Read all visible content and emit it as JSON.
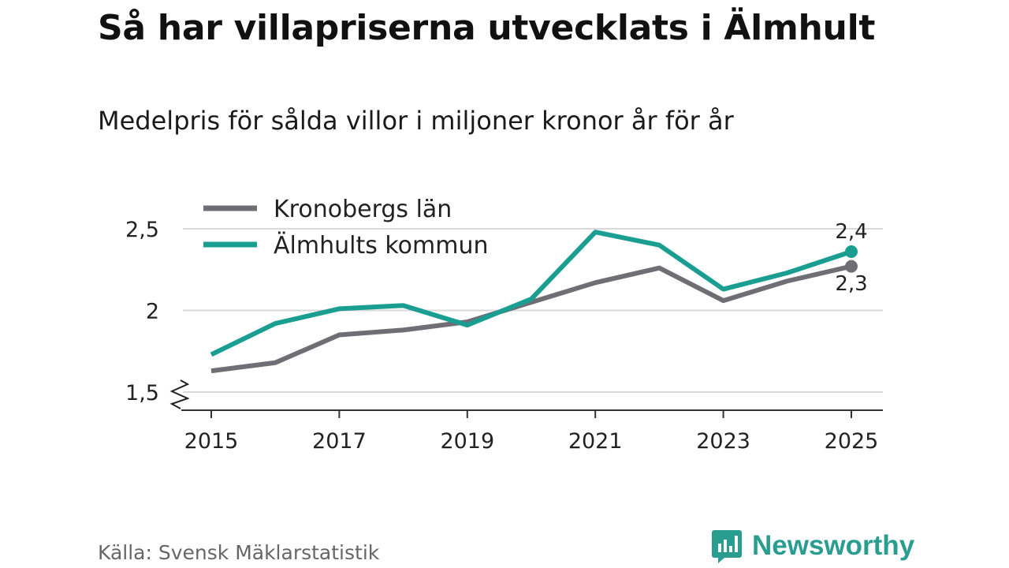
{
  "title": "Så har villapriserna utvecklats i Älmhult",
  "subtitle": "Medelpris för sålda villor i miljoner kronor år för år",
  "source": "Källa: Svensk Mäklarstatistik",
  "brand": {
    "name": "Newsworthy",
    "icon": "newsworthy-logo-icon",
    "color": "#2a9d91"
  },
  "chart_data": {
    "type": "line",
    "title": "Så har villapriserna utvecklats i Älmhult",
    "subtitle": "Medelpris för sålda villor i miljoner kronor år för år",
    "xlabel": "",
    "ylabel": "",
    "x": [
      2015,
      2016,
      2017,
      2018,
      2019,
      2020,
      2021,
      2022,
      2023,
      2024,
      2025
    ],
    "xticks": [
      "2015",
      "2017",
      "2019",
      "2021",
      "2023",
      "2025"
    ],
    "yticks": [
      {
        "value": 1.5,
        "label": "1,5"
      },
      {
        "value": 2,
        "label": "2"
      },
      {
        "value": 2.5,
        "label": "2,5"
      }
    ],
    "ylim": [
      1.38,
      2.62
    ],
    "axis_break": true,
    "grid": true,
    "legend": "top-left",
    "series": [
      {
        "name": "Kronobergs län",
        "color": "#6f6e75",
        "values": [
          1.63,
          1.68,
          1.85,
          1.88,
          1.93,
          2.05,
          2.17,
          2.26,
          2.06,
          2.18,
          2.27
        ],
        "end_label": "2,3",
        "end_label_position": "below"
      },
      {
        "name": "Älmhults kommun",
        "color": "#1a9e91",
        "values": [
          1.73,
          1.92,
          2.01,
          2.03,
          1.91,
          2.07,
          2.48,
          2.4,
          2.13,
          2.23,
          2.36
        ],
        "end_label": "2,4",
        "end_label_position": "above"
      }
    ]
  }
}
